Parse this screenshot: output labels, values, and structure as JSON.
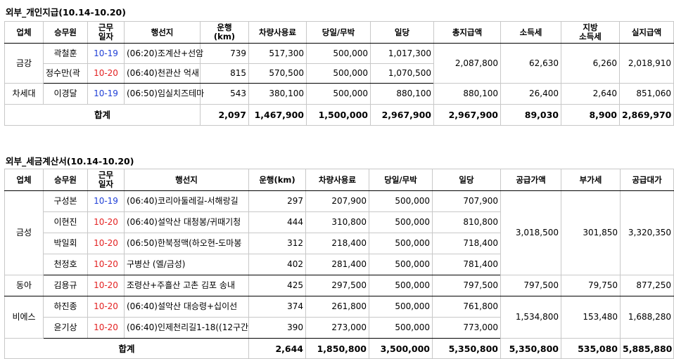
{
  "section1": {
    "title": "외부_개인지급(10.14-10.20)",
    "headers": {
      "company": "업체",
      "driver": "승무원",
      "date_l1": "근무",
      "date_l2": "일자",
      "route": "행선지",
      "dist_l1": "운행",
      "dist_l2": "(km)",
      "vehicle": "차량사용료",
      "daily": "당일/무박",
      "perdiem": "일당",
      "total_pay": "총지급액",
      "income_tax": "소득세",
      "local_l1": "지방",
      "local_l2": "소득세",
      "net": "실지급액"
    },
    "groups": [
      {
        "company": "금강",
        "total_pay": "2,087,800",
        "income_tax": "62,630",
        "local_tax": "6,260",
        "net": "2,018,910",
        "rows": [
          {
            "driver": "곽철훈",
            "date": "10-19",
            "date_color": "blue",
            "route": "(06:20)조계산+선암",
            "km": "739",
            "vehicle": "517,300",
            "daily": "500,000",
            "perdiem": "1,017,300"
          },
          {
            "driver": "정수만(곽",
            "date": "10-20",
            "date_color": "red",
            "route": "(06:40)천관산 억새",
            "km": "815",
            "vehicle": "570,500",
            "daily": "500,000",
            "perdiem": "1,070,500"
          }
        ]
      },
      {
        "company": "차세대",
        "total_pay": "880,100",
        "income_tax": "26,400",
        "local_tax": "2,640",
        "net": "851,060",
        "rows": [
          {
            "driver": "이경달",
            "date": "10-19",
            "date_color": "blue",
            "route": "(06:50)임실치즈테마",
            "km": "543",
            "vehicle": "380,100",
            "daily": "500,000",
            "perdiem": "880,100"
          }
        ]
      }
    ],
    "total": {
      "label": "합계",
      "km": "2,097",
      "vehicle": "1,467,900",
      "daily": "1,500,000",
      "perdiem": "2,967,900",
      "total_pay": "2,967,900",
      "income_tax": "89,030",
      "local_tax": "8,900",
      "net": "2,869,970"
    }
  },
  "section2": {
    "title": "외부_세금계산서(10.14-10.20)",
    "headers": {
      "company": "업체",
      "driver": "승무원",
      "date_l1": "근무",
      "date_l2": "일자",
      "route": "행선지",
      "dist": "운행(km)",
      "vehicle": "차량사용료",
      "daily": "당일/무박",
      "perdiem": "일당",
      "supply": "공급가액",
      "vat": "부가세",
      "supply_total": "공급대가"
    },
    "groups": [
      {
        "company": "금성",
        "supply": "3,018,500",
        "vat": "301,850",
        "supply_total": "3,320,350",
        "rows": [
          {
            "driver": "구성본",
            "date": "10-19",
            "date_color": "blue",
            "route": "(06:40)코리아둘레길-서해랑길",
            "km": "297",
            "vehicle": "207,900",
            "daily": "500,000",
            "perdiem": "707,900"
          },
          {
            "driver": "이현진",
            "date": "10-20",
            "date_color": "red",
            "route": "(06:40)설악산 대청봉/귀때기청",
            "km": "444",
            "vehicle": "310,800",
            "daily": "500,000",
            "perdiem": "810,800"
          },
          {
            "driver": "박일회",
            "date": "10-20",
            "date_color": "red",
            "route": "(06:50)한북정맥(하오현-도마봉",
            "km": "312",
            "vehicle": "218,400",
            "daily": "500,000",
            "perdiem": "718,400"
          },
          {
            "driver": "천정호",
            "date": "10-20",
            "date_color": "red",
            "route": "구병산 (엘/금성)",
            "km": "402",
            "vehicle": "281,400",
            "daily": "500,000",
            "perdiem": "781,400"
          }
        ]
      },
      {
        "company": "동아",
        "supply": "797,500",
        "vat": "79,750",
        "supply_total": "877,250",
        "rows": [
          {
            "driver": "김용규",
            "date": "10-20",
            "date_color": "red",
            "route": "조령산+주흘산 고촌 김포 송내",
            "km": "425",
            "vehicle": "297,500",
            "daily": "500,000",
            "perdiem": "797,500"
          }
        ]
      },
      {
        "company": "비에스",
        "supply": "1,534,800",
        "vat": "153,480",
        "supply_total": "1,688,280",
        "rows": [
          {
            "driver": "하진종",
            "date": "10-20",
            "date_color": "red",
            "route": "(06:40)설악산 대승령+십이선",
            "km": "374",
            "vehicle": "261,800",
            "daily": "500,000",
            "perdiem": "761,800"
          },
          {
            "driver": "윤기상",
            "date": "10-20",
            "date_color": "red",
            "route": "(06:40)인제천리길1-18((12구간",
            "km": "390",
            "vehicle": "273,000",
            "daily": "500,000",
            "perdiem": "773,000"
          }
        ]
      }
    ],
    "total": {
      "label": "합계",
      "km": "2,644",
      "vehicle": "1,850,800",
      "daily": "3,500,000",
      "perdiem": "5,350,800",
      "supply": "5,350,800",
      "vat": "535,080",
      "supply_total": "5,885,880"
    }
  },
  "colors": {
    "date_blue": "#1f3fd6",
    "date_red": "#e32121"
  }
}
